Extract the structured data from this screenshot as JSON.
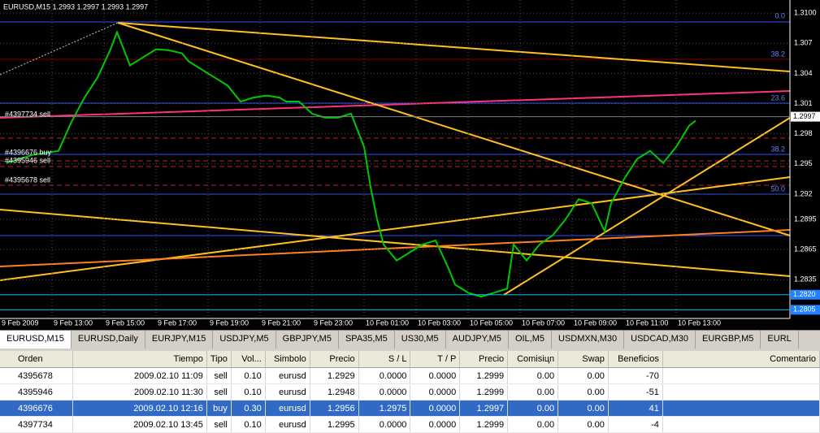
{
  "chart_data": {
    "type": "line",
    "title": "EURUSD,M15  1.2993 1.2997 1.2993 1.2997",
    "x": [
      1,
      5,
      9,
      11,
      13,
      15,
      17,
      18,
      20,
      22,
      24,
      26,
      28,
      29,
      31,
      33,
      35,
      37,
      39,
      41,
      43,
      44,
      46,
      48,
      50,
      52,
      54,
      56,
      57,
      58,
      59,
      61,
      63,
      65,
      67,
      69,
      70,
      72,
      74,
      76,
      78,
      79,
      81,
      83,
      85,
      87,
      89,
      91,
      93,
      94,
      96,
      98,
      100,
      102,
      104,
      106,
      107
    ],
    "series": [
      {
        "color": "#00c800",
        "values": [
          1.2951,
          1.2959,
          1.2963,
          1.2992,
          1.3016,
          1.3036,
          1.3064,
          1.3081,
          1.3048,
          1.3056,
          1.3064,
          1.3063,
          1.306,
          1.3052,
          1.3044,
          1.3036,
          1.3028,
          1.3012,
          1.3016,
          1.3018,
          1.3016,
          1.3012,
          1.3012,
          1.3,
          1.2996,
          1.2996,
          1.3,
          1.2967,
          1.2927,
          1.2895,
          1.287,
          1.2854,
          1.2862,
          1.287,
          1.2874,
          1.2846,
          1.283,
          1.2822,
          1.2818,
          1.2822,
          1.2826,
          1.287,
          1.2854,
          1.287,
          1.2879,
          1.2895,
          1.2915,
          1.2911,
          1.2883,
          1.2911,
          1.2935,
          1.2955,
          1.2963,
          1.2951,
          1.2967,
          1.2988,
          1.2993
        ]
      }
    ],
    "xlim": [
      0,
      121.5
    ],
    "ylim": [
      1.2798,
      1.3113
    ],
    "xticks": [
      {
        "value": 0,
        "label": "9 Feb 2009"
      },
      {
        "value": 8,
        "label": "9 Feb 13:00"
      },
      {
        "value": 16,
        "label": "9 Feb 15:00"
      },
      {
        "value": 24,
        "label": "9 Feb 17:00"
      },
      {
        "value": 32,
        "label": "9 Feb 19:00"
      },
      {
        "value": 40,
        "label": "9 Feb 21:00"
      },
      {
        "value": 48,
        "label": "9 Feb 23:00"
      },
      {
        "value": 56,
        "label": "10 Feb 01:00"
      },
      {
        "value": 64,
        "label": "10 Feb 03:00"
      },
      {
        "value": 72,
        "label": "10 Feb 05:00"
      },
      {
        "value": 80,
        "label": "10 Feb 07:00"
      },
      {
        "value": 88,
        "label": "10 Feb 09:00"
      },
      {
        "value": 96,
        "label": "10 Feb 11:00"
      },
      {
        "value": 104,
        "label": "10 Feb 13:00"
      }
    ],
    "yticks": [
      {
        "value": 1.31,
        "label": "1.3100"
      },
      1.307,
      1.304,
      1.301,
      1.298,
      1.295,
      1.292,
      1.2895,
      1.2865,
      1.2835
    ],
    "price_marks": [
      {
        "value": 1.2997,
        "label": "1.2997"
      },
      {
        "value": 1.282,
        "label": "1.2820"
      },
      {
        "value": 1.2805,
        "label": "1.2805"
      }
    ],
    "grid": true,
    "order_labels": [
      "#4397734 sell",
      "#4396676 buy",
      "#4395946 sell",
      "#4395678 sell"
    ],
    "fibo_labels": [
      "0.0",
      "38.2",
      "23.6",
      "38.2",
      "50.0"
    ]
  },
  "tabs": [
    "EURUSD,M15",
    "EURUSD,Daily",
    "EURJPY,M15",
    "USDJPY,M5",
    "GBPJPY,M5",
    "SPA35,M5",
    "US30,M5",
    "AUDJPY,M5",
    "OIL,M5",
    "USDMXN,M30",
    "USDCAD,M30",
    "EURGBP,M5",
    "EURL"
  ],
  "table": {
    "columns": [
      "Orden",
      "Tiempo",
      "Tipo",
      "Vol...",
      "Simbolo",
      "Precio",
      "S / L",
      "T / P",
      "Precio",
      "Comisiцn",
      "Swap",
      "Beneficios",
      "Comentario"
    ],
    "rows": [
      [
        "4395678",
        "2009.02.10 11:09",
        "sell",
        "0.10",
        "eurusd",
        "1.2929",
        "0.0000",
        "0.0000",
        "1.2999",
        "0.00",
        "0.00",
        "-70",
        ""
      ],
      [
        "4395946",
        "2009.02.10 11:30",
        "sell",
        "0.10",
        "eurusd",
        "1.2948",
        "0.0000",
        "0.0000",
        "1.2999",
        "0.00",
        "0.00",
        "-51",
        ""
      ],
      [
        "4396676",
        "2009.02.10 12:16",
        "buy",
        "0.30",
        "eurusd",
        "1.2956",
        "1.2975",
        "0.0000",
        "1.2997",
        "0.00",
        "0.00",
        "41",
        ""
      ],
      [
        "4397734",
        "2009.02.10 13:45",
        "sell",
        "0.10",
        "eurusd",
        "1.2995",
        "0.0000",
        "0.0000",
        "1.2999",
        "0.00",
        "0.00",
        "-4",
        ""
      ]
    ]
  }
}
